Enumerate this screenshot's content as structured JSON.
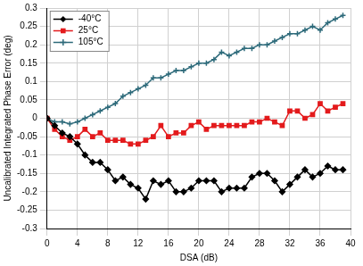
{
  "chart_data": {
    "type": "line",
    "x_label": "DSA (dB)",
    "y_label": "Uncalibrated Integrated Phase Error (deg)",
    "x": [
      0,
      1,
      2,
      3,
      4,
      5,
      6,
      7,
      8,
      9,
      10,
      11,
      12,
      13,
      14,
      15,
      16,
      17,
      18,
      19,
      20,
      21,
      22,
      23,
      24,
      25,
      26,
      27,
      28,
      29,
      30,
      31,
      32,
      33,
      34,
      35,
      36,
      37,
      38,
      39
    ],
    "series": [
      {
        "name": "-40°C",
        "color": "#000000",
        "marker": "diamond",
        "values": [
          0,
          -0.02,
          -0.04,
          -0.05,
          -0.07,
          -0.1,
          -0.12,
          -0.12,
          -0.14,
          -0.17,
          -0.16,
          -0.18,
          -0.19,
          -0.22,
          -0.17,
          -0.18,
          -0.17,
          -0.2,
          -0.2,
          -0.19,
          -0.17,
          -0.17,
          -0.17,
          -0.2,
          -0.19,
          -0.19,
          -0.19,
          -0.16,
          -0.15,
          -0.15,
          -0.17,
          -0.2,
          -0.18,
          -0.16,
          -0.14,
          -0.16,
          -0.15,
          -0.13,
          -0.14,
          -0.14
        ]
      },
      {
        "name": "25°C",
        "color": "#e31a1c",
        "marker": "square",
        "values": [
          0,
          -0.03,
          -0.05,
          -0.06,
          -0.05,
          -0.03,
          -0.05,
          -0.04,
          -0.06,
          -0.06,
          -0.06,
          -0.07,
          -0.07,
          -0.06,
          -0.05,
          -0.02,
          -0.05,
          -0.04,
          -0.04,
          -0.02,
          -0.01,
          -0.03,
          -0.02,
          -0.02,
          -0.02,
          -0.02,
          -0.02,
          -0.01,
          -0.01,
          0,
          -0.01,
          -0.02,
          0.02,
          0.02,
          0,
          0.01,
          0.04,
          0.02,
          0.03,
          0.04
        ]
      },
      {
        "name": "105°C",
        "color": "#2d6a7a",
        "marker": "plus",
        "values": [
          0,
          -0.01,
          -0.01,
          -0.015,
          -0.01,
          0,
          0.01,
          0.02,
          0.03,
          0.04,
          0.06,
          0.07,
          0.08,
          0.09,
          0.11,
          0.11,
          0.12,
          0.13,
          0.13,
          0.14,
          0.15,
          0.15,
          0.16,
          0.18,
          0.17,
          0.18,
          0.19,
          0.19,
          0.2,
          0.2,
          0.21,
          0.22,
          0.23,
          0.23,
          0.24,
          0.25,
          0.24,
          0.26,
          0.27,
          0.28
        ]
      }
    ],
    "xlim": [
      0,
      40
    ],
    "xticks": [
      0,
      4,
      8,
      12,
      16,
      20,
      24,
      28,
      32,
      36,
      40
    ],
    "ylim": [
      -0.3,
      0.3
    ],
    "yticks": [
      -0.3,
      -0.25,
      -0.2,
      -0.15,
      -0.1,
      -0.05,
      0,
      0.05,
      0.1,
      0.15,
      0.2,
      0.25,
      0.3
    ],
    "grid": true,
    "legend": "upper left"
  }
}
